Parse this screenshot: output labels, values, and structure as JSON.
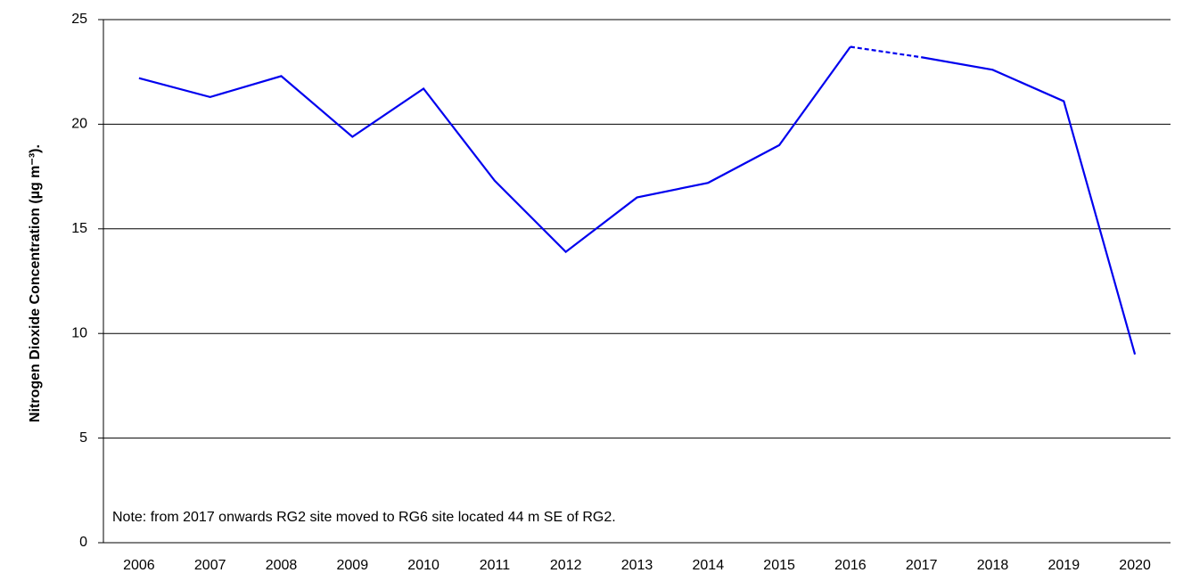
{
  "chart_data": {
    "type": "line",
    "y_label": "Nitrogen Dioxide Concentration (µg m⁻³).",
    "annotation": "Note: from 2017 onwards RG2 site moved to RG6 site located 44 m SE of RG2.",
    "categories": [
      "2006",
      "2007",
      "2008",
      "2009",
      "2010",
      "2011",
      "2012",
      "2013",
      "2014",
      "2015",
      "2016",
      "2017",
      "2018",
      "2019",
      "2020"
    ],
    "series": [
      {
        "color": "#0000ee",
        "values": [
          22.2,
          21.3,
          22.3,
          19.4,
          21.7,
          17.3,
          13.9,
          16.5,
          17.2,
          19.0,
          23.7,
          23.2,
          22.6,
          21.1,
          9.0
        ],
        "segment_styles": [
          "solid",
          "solid",
          "solid",
          "solid",
          "solid",
          "solid",
          "solid",
          "solid",
          "solid",
          "solid",
          "dashed",
          "solid",
          "solid",
          "solid"
        ]
      }
    ],
    "ylim": [
      0,
      25
    ],
    "yticks": [
      0,
      5,
      10,
      15,
      20,
      25
    ],
    "grid": true
  }
}
